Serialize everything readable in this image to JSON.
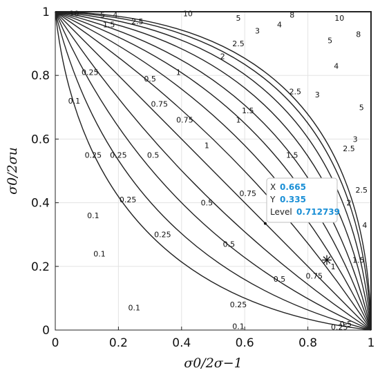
{
  "chart_data": {
    "type": "contour",
    "title": "",
    "xlabel": "σ0/2σ−1",
    "ylabel": "σ0/2σu",
    "xlim": [
      0,
      1
    ],
    "ylim": [
      0,
      1
    ],
    "x_ticks": [
      "0",
      "0.2",
      "0.4",
      "0.6",
      "0.8",
      "1"
    ],
    "y_ticks": [
      "0",
      "0.2",
      "0.4",
      "0.6",
      "0.8",
      "1"
    ],
    "grid": true,
    "colors": {
      "line": "#222222",
      "grid": "#e3e3e3",
      "datatip_value": "#1a8fd6"
    },
    "levels": [
      0.1,
      0.25,
      0.5,
      0.75,
      1,
      1.5,
      2,
      2.5,
      3,
      4,
      5,
      8,
      10
    ],
    "level_curves": [
      {
        "level": 0.1,
        "corner_pull": 0.9,
        "labels": [
          {
            "text": "0.1",
            "x": 0.06,
            "y": 0.72
          },
          {
            "text": "0.1",
            "x": 0.12,
            "y": 0.36
          },
          {
            "text": "0.1",
            "x": 0.25,
            "y": 0.07
          },
          {
            "text": "0.1",
            "x": 0.14,
            "y": 0.24
          },
          {
            "text": "0.1",
            "x": 0.58,
            "y": 0.012
          }
        ]
      },
      {
        "level": 0.25,
        "corner_pull": 0.8,
        "labels": [
          {
            "text": "0.25",
            "x": 0.11,
            "y": 0.81
          },
          {
            "text": "0.25",
            "x": 0.2,
            "y": 0.55
          },
          {
            "text": "0.25",
            "x": 0.34,
            "y": 0.3
          },
          {
            "text": "0.25",
            "x": 0.58,
            "y": 0.08
          },
          {
            "text": "0.25",
            "x": 0.12,
            "y": 0.55
          },
          {
            "text": "0.25",
            "x": 0.23,
            "y": 0.41
          },
          {
            "text": "0.25",
            "x": 0.9,
            "y": 0.01
          }
        ]
      },
      {
        "level": 0.5,
        "corner_pull": 0.7,
        "labels": [
          {
            "text": "0.5",
            "x": 0.3,
            "y": 0.79
          },
          {
            "text": "0.5",
            "x": 0.31,
            "y": 0.55
          },
          {
            "text": "0.5",
            "x": 0.48,
            "y": 0.4
          },
          {
            "text": "0.5",
            "x": 0.71,
            "y": 0.16
          },
          {
            "text": "0.5",
            "x": 0.55,
            "y": 0.27
          },
          {
            "text": "0.5",
            "x": 0.92,
            "y": 0.02
          }
        ]
      },
      {
        "level": 0.75,
        "corner_pull": 0.6,
        "labels": [
          {
            "text": "0.75",
            "x": 0.41,
            "y": 0.66
          },
          {
            "text": "0.75",
            "x": 0.61,
            "y": 0.43
          },
          {
            "text": "0.75",
            "x": 0.82,
            "y": 0.17
          },
          {
            "text": "0.75",
            "x": 0.33,
            "y": 0.71
          }
        ]
      },
      {
        "level": 1,
        "corner_pull": 0.5,
        "labels": [
          {
            "text": "1",
            "x": 0.39,
            "y": 0.81
          },
          {
            "text": "1",
            "x": 0.58,
            "y": 0.66
          },
          {
            "text": "1",
            "x": 0.88,
            "y": 0.2
          },
          {
            "text": "1",
            "x": 0.48,
            "y": 0.58
          }
        ]
      },
      {
        "level": 1.5,
        "corner_pull": 0.4,
        "labels": [
          {
            "text": "1.5",
            "x": 0.17,
            "y": 0.96
          },
          {
            "text": "1.5",
            "x": 0.61,
            "y": 0.69
          },
          {
            "text": "1.5",
            "x": 0.75,
            "y": 0.55
          },
          {
            "text": "1.5",
            "x": 0.96,
            "y": 0.22
          }
        ]
      },
      {
        "level": 2,
        "corner_pull": 0.32,
        "labels": [
          {
            "text": "2",
            "x": 0.53,
            "y": 0.86
          },
          {
            "text": "2",
            "x": 0.93,
            "y": 0.4
          }
        ]
      },
      {
        "level": 2.5,
        "corner_pull": 0.25,
        "labels": [
          {
            "text": "2.5",
            "x": 0.26,
            "y": 0.97
          },
          {
            "text": "2.5",
            "x": 0.58,
            "y": 0.9
          },
          {
            "text": "2.5",
            "x": 0.76,
            "y": 0.75
          },
          {
            "text": "2.5",
            "x": 0.93,
            "y": 0.57
          },
          {
            "text": "2.5",
            "x": 0.97,
            "y": 0.44
          }
        ]
      },
      {
        "level": 3,
        "corner_pull": 0.19,
        "labels": [
          {
            "text": "3",
            "x": 0.64,
            "y": 0.94
          },
          {
            "text": "3",
            "x": 0.83,
            "y": 0.74
          },
          {
            "text": "3",
            "x": 0.95,
            "y": 0.6
          }
        ]
      },
      {
        "level": 4,
        "corner_pull": 0.13,
        "labels": [
          {
            "text": "4",
            "x": 0.19,
            "y": 0.99
          },
          {
            "text": "4",
            "x": 0.71,
            "y": 0.96
          },
          {
            "text": "4",
            "x": 0.89,
            "y": 0.83
          },
          {
            "text": "4",
            "x": 0.98,
            "y": 0.33
          }
        ]
      },
      {
        "level": 5,
        "corner_pull": 0.08,
        "labels": [
          {
            "text": "5",
            "x": 0.15,
            "y": 0.99
          },
          {
            "text": "5",
            "x": 0.58,
            "y": 0.98
          },
          {
            "text": "5",
            "x": 0.87,
            "y": 0.91
          },
          {
            "text": "5",
            "x": 0.97,
            "y": 0.7
          }
        ]
      },
      {
        "level": 8,
        "corner_pull": 0.04,
        "labels": [
          {
            "text": "8",
            "x": 0.75,
            "y": 0.99
          },
          {
            "text": "8",
            "x": 0.96,
            "y": 0.93
          }
        ]
      },
      {
        "level": 10,
        "corner_pull": 0.015,
        "labels": [
          {
            "text": "10",
            "x": 0.42,
            "y": 0.995
          },
          {
            "text": "10",
            "x": 0.9,
            "y": 0.98
          },
          {
            "text": "10",
            "x": 0.06,
            "y": 0.995
          }
        ]
      }
    ],
    "marker": {
      "type": "asterisk",
      "x": 0.86,
      "y": 0.22
    },
    "datatip": {
      "point": {
        "x": 0.665,
        "y": 0.335
      },
      "rows": [
        {
          "key": "X",
          "value": "0.665"
        },
        {
          "key": "Y",
          "value": "0.335"
        },
        {
          "key": "Level",
          "value": "0.712739"
        }
      ]
    }
  }
}
